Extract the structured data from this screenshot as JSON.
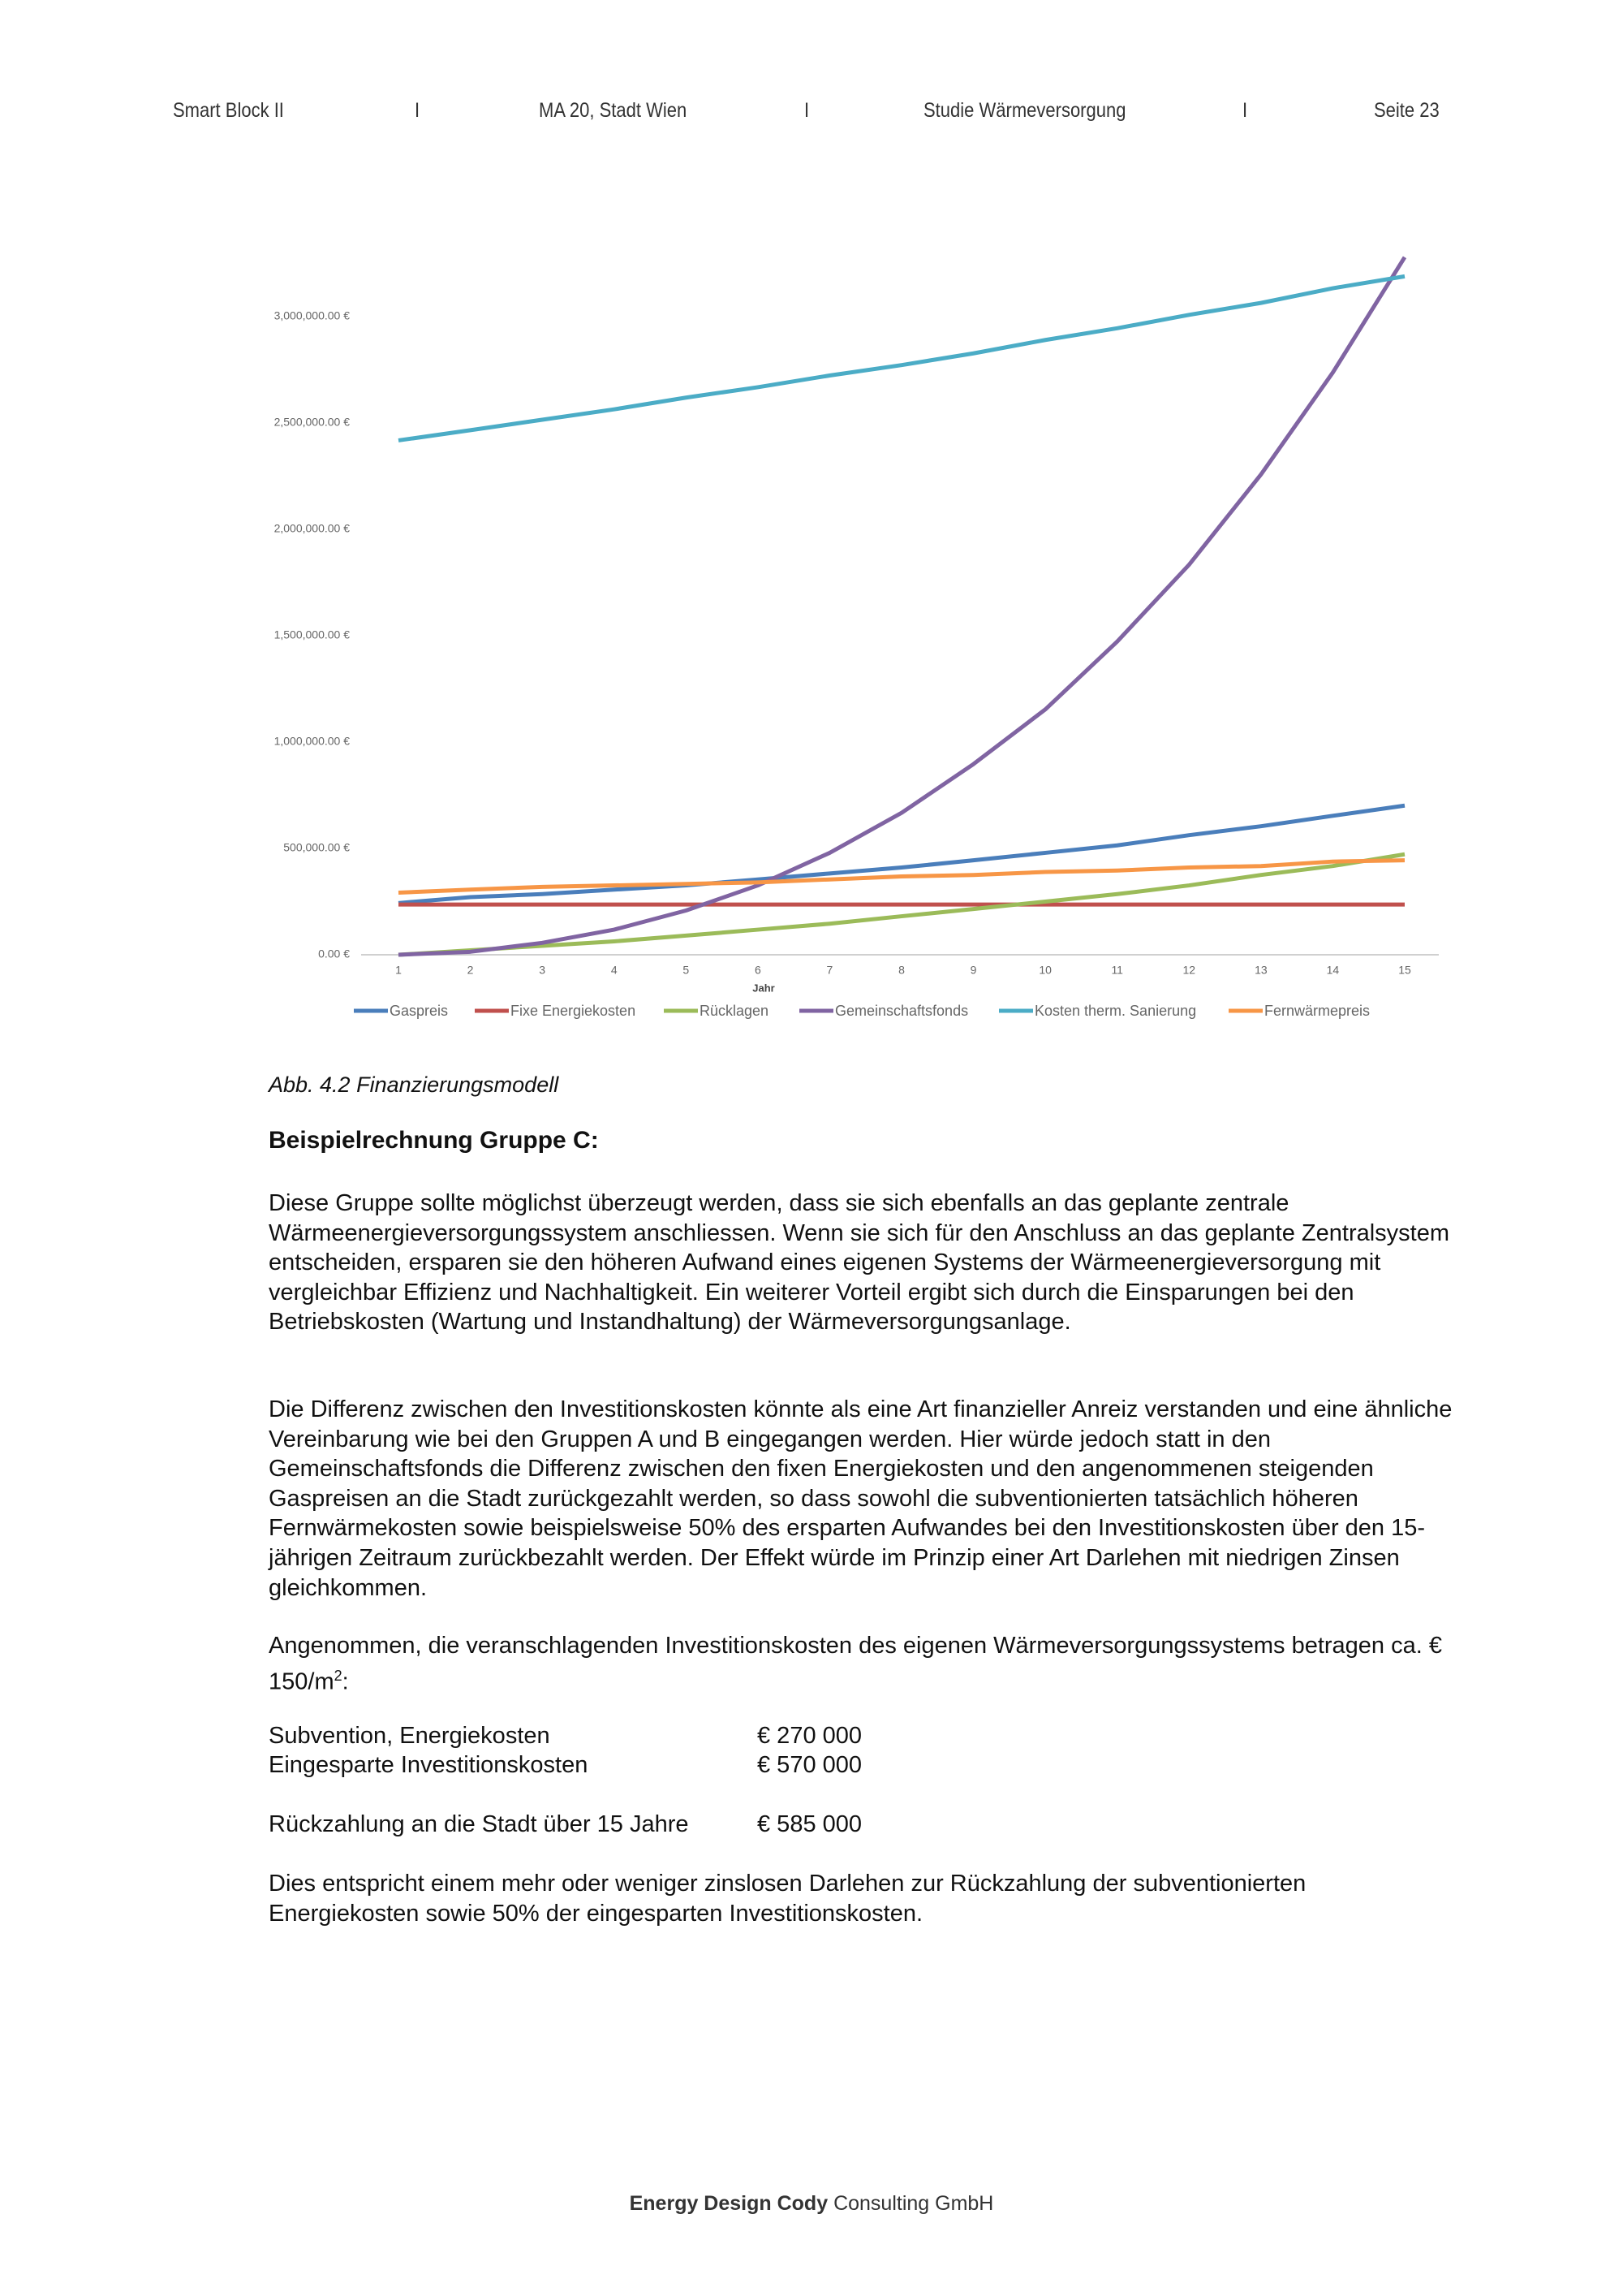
{
  "header": {
    "items": [
      "Smart Block II",
      "I",
      "MA 20, Stadt Wien",
      "I",
      "Studie Wärmeversorgung",
      "I",
      "Seite 23"
    ]
  },
  "chart_data": {
    "type": "line",
    "x": [
      1,
      2,
      3,
      4,
      5,
      6,
      7,
      8,
      9,
      10,
      11,
      12,
      13,
      14,
      15
    ],
    "xlim": [
      1,
      15
    ],
    "xticks": [
      1,
      2,
      3,
      4,
      5,
      6,
      7,
      8,
      9,
      10,
      11,
      12,
      13,
      14,
      15
    ],
    "x_label": "Jahr",
    "ylim": [
      0,
      3300000
    ],
    "yticks": [
      {
        "value": 0,
        "label": "0.00 €"
      },
      {
        "value": 500000,
        "label": "500,000.00 €"
      },
      {
        "value": 1000000,
        "label": "1,000,000.00 €"
      },
      {
        "value": 1500000,
        "label": "1,500,000.00 €"
      },
      {
        "value": 2000000,
        "label": "2,000,000.00 €"
      },
      {
        "value": 2500000,
        "label": "2,500,000.00 €"
      },
      {
        "value": 3000000,
        "label": "3,000,000.00 €"
      }
    ],
    "grid": false,
    "legend": "bottom",
    "series": [
      {
        "name": "Gaspreis",
        "color": "#4a7ebb",
        "values": [
          243000,
          271000,
          285000,
          306000,
          326000,
          354000,
          382000,
          410000,
          444000,
          479000,
          514000,
          562000,
          604000,
          653000,
          701000
        ]
      },
      {
        "name": "Fixe Energiekosten",
        "color": "#c0504d",
        "values": [
          236000,
          236000,
          236000,
          236000,
          236000,
          236000,
          236000,
          236000,
          236000,
          236000,
          236000,
          236000,
          236000,
          236000,
          236000
        ]
      },
      {
        "name": "Rücklagen",
        "color": "#9bbb59",
        "values": [
          0,
          21000,
          42000,
          63000,
          90000,
          118000,
          146000,
          181000,
          215000,
          250000,
          285000,
          326000,
          375000,
          417000,
          472000
        ]
      },
      {
        "name": "Gemeinschaftsfonds",
        "color": "#8064a2",
        "values": [
          0,
          14000,
          56000,
          118000,
          208000,
          326000,
          479000,
          667000,
          896000,
          1153000,
          1472000,
          1833000,
          2257000,
          2736000,
          3278000
        ]
      },
      {
        "name": "Kosten therm. Sanierung",
        "color": "#4bacc6",
        "values": [
          2417000,
          2465000,
          2514000,
          2563000,
          2618000,
          2667000,
          2722000,
          2771000,
          2826000,
          2889000,
          2944000,
          3007000,
          3063000,
          3132000,
          3188000
        ]
      },
      {
        "name": "Fernwärmepreis",
        "color": "#f79646",
        "values": [
          292000,
          306000,
          319000,
          326000,
          333000,
          340000,
          354000,
          368000,
          375000,
          389000,
          396000,
          410000,
          417000,
          438000,
          444000
        ]
      }
    ]
  },
  "caption": "Abb. 4.2 Finanzierungsmodell",
  "heading": "Beispielrechnung Gruppe C:",
  "paragraphs": [
    "Diese Gruppe sollte möglichst überzeugt werden, dass sie sich ebenfalls an das geplante zentrale Wärmeenergieversorgungssystem anschliessen. Wenn sie sich für den Anschluss an das geplante Zentralsystem entscheiden, ersparen sie den höheren Aufwand eines eigenen Systems der Wärmeenergieversorgung mit vergleichbar Effizienz und Nachhaltigkeit. Ein weiterer Vorteil ergibt sich durch die Einsparungen bei den Betriebskosten (Wartung und Instandhaltung) der Wärmeversorgungsanlage.",
    "Die Differenz zwischen den Investitionskosten könnte als eine Art finanzieller Anreiz verstanden und eine ähnliche Vereinbarung wie bei den Gruppen A und B eingegangen werden. Hier würde jedoch statt in den Gemeinschaftsfonds die Differenz zwischen den fixen Energiekosten und den angenommenen steigenden Gaspreisen an die Stadt zurückgezahlt werden, so dass sowohl die subventionierten tatsächlich höheren Fernwärmekosten sowie beispielsweise 50% des ersparten Aufwandes bei den Investitionskosten über den 15-jährigen Zeitraum zurückbezahlt werden. Der Effekt würde im Prinzip einer Art Darlehen mit niedrigen Zinsen gleichkommen."
  ],
  "assumption": {
    "text": "Angenommen, die veranschlagenden Investitionskosten des eigenen Wärmeversorgungssystems betragen ca. € 150/m",
    "sup": "2",
    "tail": ":"
  },
  "table": {
    "rows": [
      [
        "Subvention, Energiekosten",
        "€ 270 000"
      ],
      [
        "Eingesparte Investitionskosten",
        "€ 570 000"
      ],
      [
        "Rückzahlung an die Stadt über 15 Jahre",
        "€ 585 000"
      ]
    ]
  },
  "conclusion": "Dies entspricht einem mehr oder weniger zinslosen Darlehen zur Rückzahlung der subventionierten Energiekosten sowie 50% der eingesparten Investitionskosten.",
  "footer": {
    "bold": "Energy Design Cody",
    "normal": "Consulting GmbH"
  }
}
